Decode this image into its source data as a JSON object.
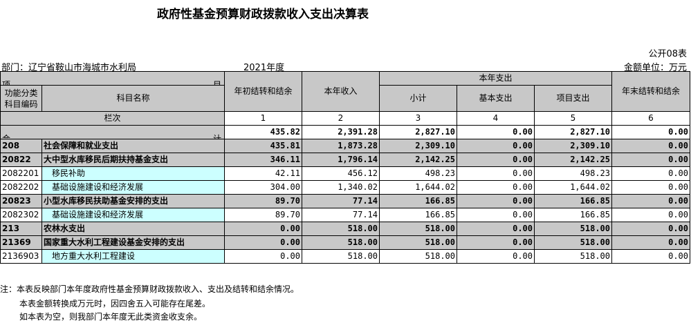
{
  "title": "政府性基金预算财政拨款收入支出决算表",
  "form_no": "公开08表",
  "department": "部门：辽宁省鞍山市海城市水利局",
  "year": "2021年度",
  "unit": "金额单位：万元",
  "headers": {
    "item": "项",
    "item_right": "目",
    "func_code": "功能分类科目编码",
    "subject_name": "科目名称",
    "begin_balance": "年初结转和结余",
    "income": "本年收入",
    "expense_group": "本年支出",
    "subtotal": "小计",
    "basic": "基本支出",
    "project": "项目支出",
    "end_balance": "年末结转和结余",
    "row_label": "栏次",
    "col_nums": [
      "1",
      "2",
      "3",
      "4",
      "5",
      "6"
    ]
  },
  "total_row": {
    "label_left": "合",
    "label_right": "计",
    "values": [
      "435.82",
      "2,391.28",
      "2,827.10",
      "0.00",
      "2,827.10",
      "0.00"
    ]
  },
  "rows": [
    {
      "code": "208",
      "name": "社会保障和就业支出",
      "level": 1,
      "values": [
        "435.81",
        "1,873.28",
        "2,309.10",
        "0.00",
        "2,309.10",
        "0.00"
      ]
    },
    {
      "code": "20822",
      "name": "大中型水库移民后期扶持基金支出",
      "level": 2,
      "values": [
        "346.11",
        "1,796.14",
        "2,142.25",
        "0.00",
        "2,142.25",
        "0.00"
      ]
    },
    {
      "code": "2082201",
      "name": "移民补助",
      "level": 3,
      "values": [
        "42.11",
        "456.12",
        "498.23",
        "0.00",
        "498.23",
        "0.00"
      ]
    },
    {
      "code": "2082202",
      "name": "基础设施建设和经济发展",
      "level": 3,
      "values": [
        "304.00",
        "1,340.02",
        "1,644.02",
        "0.00",
        "1,644.02",
        "0.00"
      ]
    },
    {
      "code": "20823",
      "name": "小型水库移民扶助基金安排的支出",
      "level": 2,
      "values": [
        "89.70",
        "77.14",
        "166.85",
        "0.00",
        "166.85",
        "0.00"
      ]
    },
    {
      "code": "2082302",
      "name": "基础设施建设和经济发展",
      "level": 3,
      "values": [
        "89.70",
        "77.14",
        "166.85",
        "0.00",
        "166.85",
        "0.00"
      ]
    },
    {
      "code": "213",
      "name": "农林水支出",
      "level": 1,
      "values": [
        "0.00",
        "518.00",
        "518.00",
        "0.00",
        "518.00",
        "0.00"
      ]
    },
    {
      "code": "21369",
      "name": "国家重大水利工程建设基金安排的支出",
      "level": 2,
      "values": [
        "0.00",
        "518.00",
        "518.00",
        "0.00",
        "518.00",
        "0.00"
      ]
    },
    {
      "code": "2136903",
      "name": "地方重大水利工程建设",
      "level": 3,
      "values": [
        "0.00",
        "518.00",
        "518.00",
        "0.00",
        "518.00",
        "0.00"
      ]
    }
  ],
  "notes": [
    "注：本表反映部门本年度政府性基金预算财政拨款收入、支出及结转和结余情况。",
    "本表金额转换成万元时，因四舍五入可能存在尾差。",
    "如本表为空，则我部门本年度无此类资金收支余。"
  ]
}
